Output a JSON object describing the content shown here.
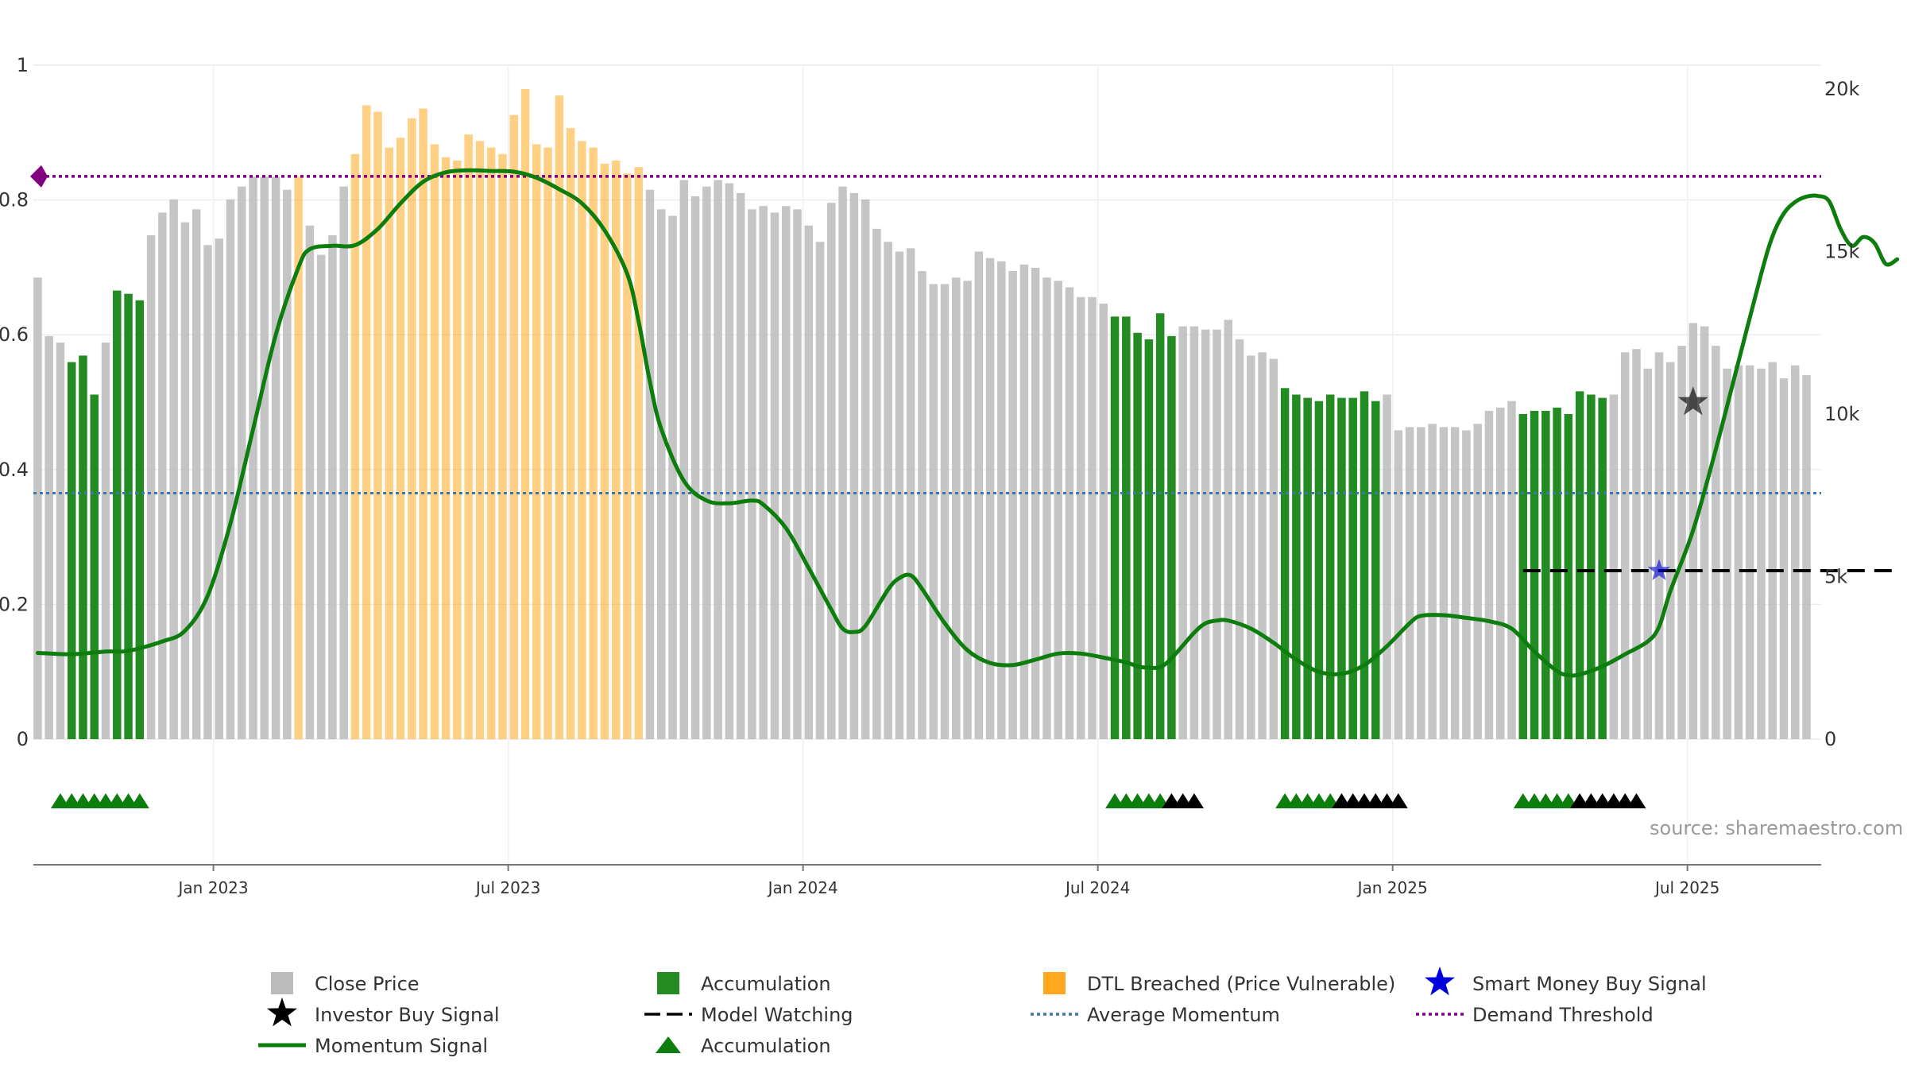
{
  "chart_data": {
    "type": "bar+line",
    "title": "",
    "source": "source: sharemaestro.com",
    "x_tick_labels": [
      "Jan 2023",
      "Jul 2023",
      "Jan 2024",
      "Jul 2024",
      "Jan 2025",
      "Jul 2025"
    ],
    "x_tick_weeks": [
      15.5,
      41.5,
      67.5,
      93.5,
      119.5,
      145.5
    ],
    "left_axis": {
      "ylim": [
        0,
        1
      ],
      "ticks": [
        "0",
        "0.2",
        "0.4",
        "0.6",
        "0.8",
        "1"
      ]
    },
    "right_axis": {
      "ylim": [
        0,
        20000
      ],
      "ticks": [
        "0",
        "5k",
        "10k",
        "15k",
        "20k"
      ]
    },
    "close_price": {
      "name": "Close Price",
      "unit": "weekly",
      "values": [
        14200,
        12400,
        12200,
        11600,
        11800,
        10600,
        12200,
        13800,
        13700,
        13500,
        15500,
        16200,
        16600,
        15900,
        16300,
        15200,
        15400,
        16600,
        17000,
        17300,
        17300,
        17300,
        16900,
        17300,
        15800,
        14900,
        15500,
        17000,
        18000,
        19500,
        19300,
        18200,
        18500,
        19100,
        19400,
        18300,
        17900,
        17800,
        18600,
        18400,
        18200,
        18000,
        19200,
        20000,
        18300,
        18200,
        19800,
        18800,
        18400,
        18200,
        17700,
        17800,
        17400,
        17600,
        16900,
        16300,
        16100,
        17200,
        16700,
        17000,
        17200,
        17100,
        16800,
        16300,
        16400,
        16200,
        16400,
        16300,
        15800,
        15300,
        16500,
        17000,
        16800,
        16600,
        15700,
        15300,
        15000,
        15100,
        14400,
        14000,
        14000,
        14200,
        14100,
        15000,
        14800,
        14700,
        14400,
        14600,
        14500,
        14200,
        14100,
        13900,
        13600,
        13600,
        13400,
        13000,
        13000,
        12500,
        12300,
        13100,
        12400,
        12700,
        12700,
        12600,
        12600,
        12900,
        12300,
        11800,
        11900,
        11700,
        10800,
        10600,
        10500,
        10400,
        10600,
        10500,
        10500,
        10700,
        10400,
        10600,
        9500,
        9600,
        9600,
        9700,
        9600,
        9600,
        9500,
        9700,
        10100,
        10200,
        10400,
        10000,
        10100,
        10100,
        10200,
        10000,
        10700,
        10600,
        10500,
        10600,
        11900,
        12000,
        11400,
        11900,
        11600,
        12100,
        12800,
        12700,
        12100,
        11400,
        11500,
        11500,
        11400,
        11600,
        11100,
        11500,
        11200
      ],
      "accumulation_weeks": [
        3,
        4,
        5,
        7,
        8,
        9,
        95,
        96,
        97,
        98,
        99,
        100,
        110,
        111,
        112,
        113,
        114,
        115,
        116,
        117,
        118,
        131,
        132,
        133,
        134,
        135,
        136,
        137,
        138
      ],
      "dtl_breached_weeks": [
        23,
        28,
        29,
        30,
        31,
        32,
        33,
        34,
        35,
        36,
        37,
        38,
        39,
        40,
        41,
        42,
        43,
        44,
        45,
        46,
        47,
        48,
        49,
        50,
        51,
        52,
        53
      ]
    },
    "momentum_signal": {
      "name": "Momentum Signal",
      "points": [
        [
          0,
          0.128
        ],
        [
          3,
          0.126
        ],
        [
          6,
          0.13
        ],
        [
          8,
          0.131
        ],
        [
          11,
          0.145
        ],
        [
          13,
          0.161
        ],
        [
          15,
          0.213
        ],
        [
          17,
          0.32
        ],
        [
          19,
          0.46
        ],
        [
          21,
          0.6
        ],
        [
          23,
          0.7
        ],
        [
          24,
          0.727
        ],
        [
          26,
          0.732
        ],
        [
          28,
          0.733
        ],
        [
          30,
          0.757
        ],
        [
          32,
          0.795
        ],
        [
          34,
          0.827
        ],
        [
          36,
          0.841
        ],
        [
          38,
          0.844
        ],
        [
          40,
          0.843
        ],
        [
          42,
          0.842
        ],
        [
          44,
          0.833
        ],
        [
          46,
          0.816
        ],
        [
          48,
          0.795
        ],
        [
          50,
          0.755
        ],
        [
          52,
          0.69
        ],
        [
          53,
          0.62
        ],
        [
          54,
          0.53
        ],
        [
          55,
          0.46
        ],
        [
          57,
          0.383
        ],
        [
          59,
          0.354
        ],
        [
          61,
          0.35
        ],
        [
          63,
          0.354
        ],
        [
          64,
          0.348
        ],
        [
          66,
          0.313
        ],
        [
          68,
          0.254
        ],
        [
          70,
          0.192
        ],
        [
          71,
          0.164
        ],
        [
          72,
          0.159
        ],
        [
          73,
          0.168
        ],
        [
          75,
          0.222
        ],
        [
          76,
          0.239
        ],
        [
          77,
          0.243
        ],
        [
          78,
          0.223
        ],
        [
          80,
          0.172
        ],
        [
          82,
          0.132
        ],
        [
          84,
          0.113
        ],
        [
          86,
          0.11
        ],
        [
          88,
          0.118
        ],
        [
          90,
          0.127
        ],
        [
          92,
          0.127
        ],
        [
          94,
          0.121
        ],
        [
          96,
          0.114
        ],
        [
          97,
          0.108
        ],
        [
          98,
          0.106
        ],
        [
          99,
          0.107
        ],
        [
          100,
          0.12
        ],
        [
          102,
          0.158
        ],
        [
          103,
          0.172
        ],
        [
          104,
          0.176
        ],
        [
          105,
          0.176
        ],
        [
          107,
          0.164
        ],
        [
          109,
          0.143
        ],
        [
          111,
          0.118
        ],
        [
          113,
          0.1
        ],
        [
          115,
          0.097
        ],
        [
          117,
          0.11
        ],
        [
          119,
          0.138
        ],
        [
          121,
          0.172
        ],
        [
          122,
          0.183
        ],
        [
          124,
          0.184
        ],
        [
          126,
          0.18
        ],
        [
          128,
          0.175
        ],
        [
          130,
          0.164
        ],
        [
          132,
          0.13
        ],
        [
          134,
          0.101
        ],
        [
          135,
          0.095
        ],
        [
          136,
          0.096
        ],
        [
          138,
          0.108
        ],
        [
          140,
          0.126
        ],
        [
          142,
          0.145
        ],
        [
          143,
          0.167
        ],
        [
          144,
          0.22
        ],
        [
          146,
          0.31
        ],
        [
          148,
          0.43
        ],
        [
          150,
          0.56
        ],
        [
          152,
          0.69
        ],
        [
          153,
          0.746
        ],
        [
          154,
          0.78
        ],
        [
          155,
          0.797
        ],
        [
          156,
          0.805
        ],
        [
          157,
          0.806
        ],
        [
          158,
          0.798
        ],
        [
          159,
          0.757
        ],
        [
          160,
          0.732
        ],
        [
          161,
          0.745
        ],
        [
          162,
          0.736
        ],
        [
          163,
          0.705
        ],
        [
          164,
          0.712
        ]
      ]
    },
    "average_momentum": {
      "name": "Average Momentum",
      "value": 0.365
    },
    "demand_threshold": {
      "name": "Demand Threshold",
      "value": 0.835
    },
    "model_watching": {
      "name": "Model Watching",
      "value": 0.25,
      "from_week": 131,
      "to_week": 164
    },
    "investor_buy_signal": {
      "name": "Investor Buy Signal",
      "week": 146,
      "value": 0.5
    },
    "smart_money_buy_signal": {
      "name": "Smart Money Buy Signal",
      "week": 143,
      "value": 0.25
    },
    "accumulation_markers": {
      "name": "Accumulation",
      "green_weeks": [
        2,
        3,
        4,
        5,
        6,
        7,
        8,
        9,
        95,
        96,
        97,
        98,
        99,
        110,
        111,
        112,
        113,
        114,
        131,
        132,
        133,
        134,
        135
      ],
      "black_weeks": [
        100,
        101,
        102,
        115,
        116,
        117,
        118,
        119,
        120,
        136,
        137,
        138,
        139,
        140,
        141
      ]
    },
    "legend": [
      {
        "label": "Close Price",
        "kind": "square",
        "color": "#bbbbbb"
      },
      {
        "label": "Accumulation",
        "kind": "square",
        "color": "#228b22"
      },
      {
        "label": "DTL Breached (Price Vulnerable)",
        "kind": "square",
        "color": "#ffa81f"
      },
      {
        "label": "Smart Money Buy Signal",
        "kind": "star",
        "color": "#0000dd"
      },
      {
        "label": "Investor Buy Signal",
        "kind": "star",
        "color": "#000000"
      },
      {
        "label": "Model Watching",
        "kind": "dash",
        "color": "#000000"
      },
      {
        "label": "Average Momentum",
        "kind": "dot",
        "color": "#3d78a8"
      },
      {
        "label": "Demand Threshold",
        "kind": "dot",
        "color": "#800080"
      },
      {
        "label": "Momentum Signal",
        "kind": "line",
        "color": "#0d7e0d"
      },
      {
        "label": "Accumulation",
        "kind": "triangle",
        "color": "#0d7e0d"
      }
    ],
    "colors": {
      "close": "#bbbbbb",
      "accumulation": "#228b22",
      "dtl": "#ffa81f",
      "momentum": "#0d7e0d",
      "average": "#3d78a8",
      "threshold": "#800080",
      "watching": "#000000",
      "smart_money": "#0000dd",
      "investor": "#000000"
    }
  }
}
